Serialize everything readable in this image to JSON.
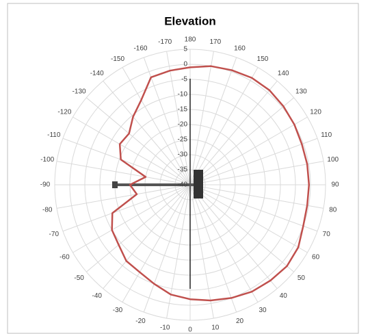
{
  "chart_data": {
    "type": "polar",
    "title": "Elevation",
    "thetaticks": [
      0,
      10,
      20,
      30,
      40,
      50,
      60,
      70,
      80,
      90,
      100,
      110,
      120,
      130,
      140,
      150,
      160,
      170,
      180,
      -170,
      -160,
      -150,
      -140,
      -130,
      -120,
      -110,
      -100,
      -90,
      -80,
      -70,
      -60,
      -50,
      -40,
      -30,
      -20,
      -10
    ],
    "rlim": [
      -40,
      5
    ],
    "rticks": [
      -40,
      -35,
      -30,
      -25,
      -20,
      -15,
      -10,
      -5,
      0,
      5
    ],
    "grid": true,
    "series": [
      {
        "color": "#c0504d",
        "theta": [
          0,
          10,
          20,
          30,
          40,
          50,
          60,
          70,
          80,
          90,
          100,
          110,
          120,
          130,
          140,
          150,
          160,
          170,
          180,
          -170,
          -160,
          -150,
          -140,
          -130,
          -120,
          -110,
          -100,
          -90,
          -80,
          -70,
          -60,
          -50,
          -40,
          -30,
          -20,
          -10
        ],
        "values": [
          -2,
          -1,
          0,
          1,
          1.5,
          2,
          1.5,
          0,
          -0.5,
          -0.5,
          -0.5,
          -0.5,
          0,
          0.5,
          1,
          1,
          0.5,
          0,
          -1,
          -1.5,
          -2,
          -7.5,
          -10.5,
          -13.5,
          -13,
          -15.5,
          -25,
          -20,
          -22,
          -12.5,
          -10,
          -9,
          -7,
          -6.5,
          -5,
          -3
        ]
      }
    ]
  }
}
